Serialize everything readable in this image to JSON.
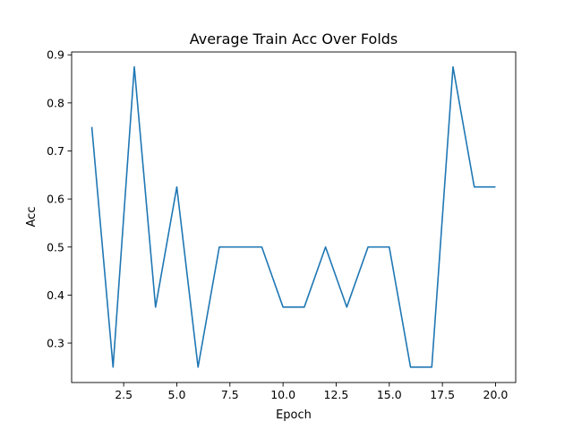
{
  "chart_data": {
    "type": "line",
    "title": "Average Train Acc Over Folds",
    "xlabel": "Epoch",
    "ylabel": "Acc",
    "xlim": [
      0.05,
      20.95
    ],
    "ylim": [
      0.218,
      0.906
    ],
    "xticks": [
      2.5,
      5.0,
      7.5,
      10.0,
      12.5,
      15.0,
      17.5,
      20.0
    ],
    "xtick_labels": [
      "2.5",
      "5.0",
      "7.5",
      "10.0",
      "12.5",
      "15.0",
      "17.5",
      "20.0"
    ],
    "yticks": [
      0.3,
      0.4,
      0.5,
      0.6,
      0.7,
      0.8,
      0.9
    ],
    "ytick_labels": [
      "0.3",
      "0.4",
      "0.5",
      "0.6",
      "0.7",
      "0.8",
      "0.9"
    ],
    "grid": false,
    "legend": "none",
    "series": [
      {
        "color": "#1f77b4",
        "x": [
          1,
          2,
          3,
          4,
          5,
          6,
          7,
          8,
          9,
          10,
          11,
          12,
          13,
          14,
          15,
          16,
          17,
          18,
          19,
          20
        ],
        "y": [
          0.75,
          0.25,
          0.875,
          0.375,
          0.625,
          0.25,
          0.5,
          0.5,
          0.5,
          0.375,
          0.375,
          0.5,
          0.375,
          0.5,
          0.5,
          0.25,
          0.25,
          0.875,
          0.625,
          0.625
        ]
      }
    ]
  }
}
